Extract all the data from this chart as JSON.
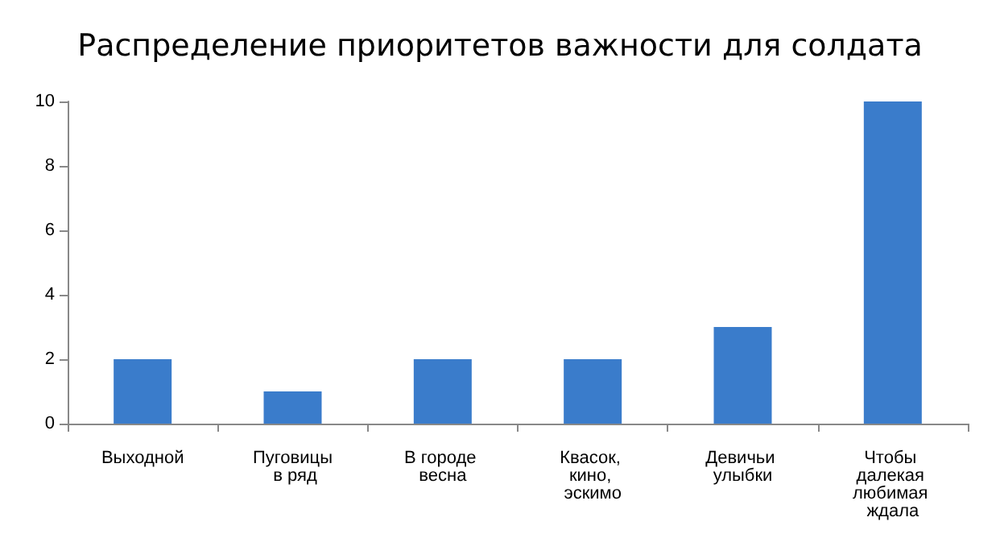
{
  "chart_data": {
    "type": "bar",
    "title": "Распределение приоритетов важности для солдата",
    "categories": [
      "Выходной",
      "Пуговицы в ряд",
      "В городе весна",
      "Квасок, кино, эскимо",
      "Девичьи улыбки",
      "Чтобы далекая любимая ждала"
    ],
    "values": [
      2,
      1,
      2,
      2,
      3,
      10
    ],
    "color": "#3a7ccb",
    "ylim": [
      0,
      10
    ],
    "yticks": [
      0,
      2,
      4,
      6,
      8,
      10
    ],
    "grid": false
  }
}
